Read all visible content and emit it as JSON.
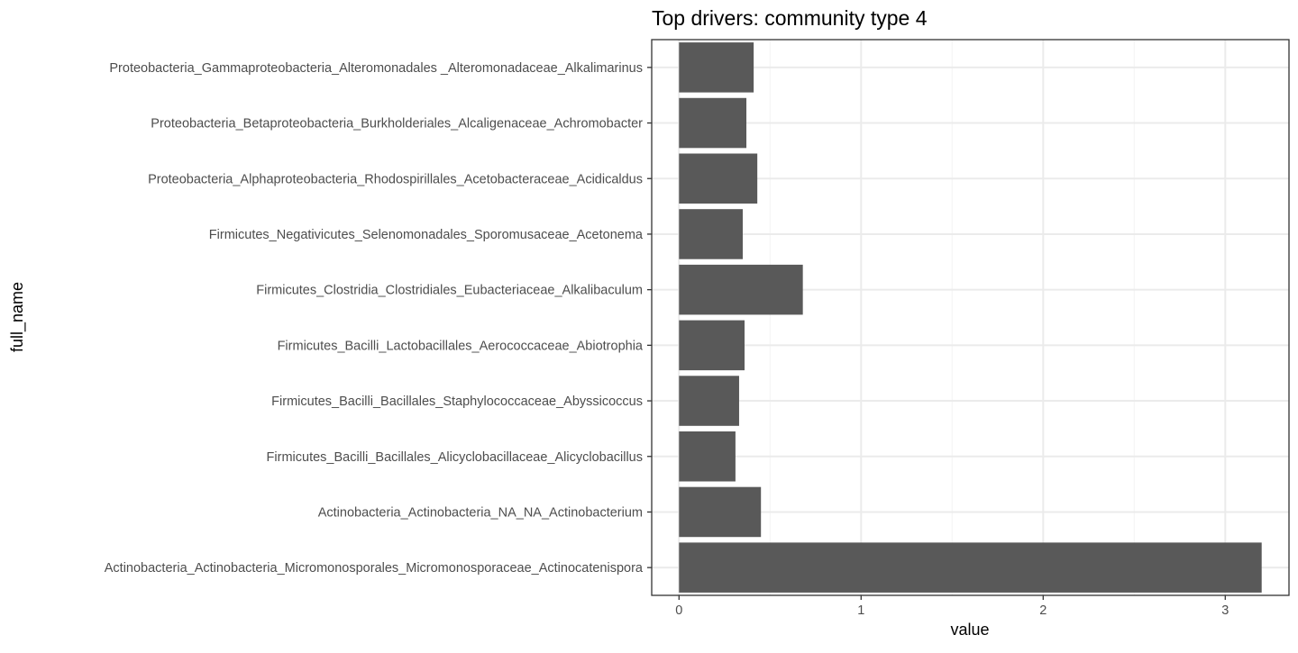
{
  "chart_data": {
    "type": "bar",
    "orientation": "horizontal",
    "title": "Top drivers: community type 4",
    "xlabel": "value",
    "ylabel": "full_name",
    "xlim": [
      -0.15,
      3.35
    ],
    "x_ticks": [
      "0",
      "1",
      "2",
      "3"
    ],
    "grid": true,
    "categories": [
      "Actinobacteria_Actinobacteria_Micromonosporales_Micromonosporaceae_Actinocatenispora",
      "Actinobacteria_Actinobacteria_NA_NA_Actinobacterium",
      "Firmicutes_Bacilli_Bacillales_Alicyclobacillaceae_Alicyclobacillus",
      "Firmicutes_Bacilli_Bacillales_Staphylococcaceae_Abyssicoccus",
      "Firmicutes_Bacilli_Lactobacillales_Aerococcaceae_Abiotrophia",
      "Firmicutes_Clostridia_Clostridiales_Eubacteriaceae_Alkalibaculum",
      "Firmicutes_Negativicutes_Selenomonadales_Sporomusaceae_Acetonema",
      "Proteobacteria_Alphaproteobacteria_Rhodospirillales_Acetobacteraceae_Acidicaldus",
      "Proteobacteria_Betaproteobacteria_Burkholderiales_Alcaligenaceae_Achromobacter",
      "Proteobacteria_Gammaproteobacteria_Alteromonadales _Alteromonadaceae_Alkalimarinus"
    ],
    "values": [
      3.2,
      0.45,
      0.31,
      0.33,
      0.36,
      0.68,
      0.35,
      0.43,
      0.37,
      0.41
    ],
    "colors": {
      "bar": "#595959",
      "panel_border": "#333333",
      "grid_major": "#ebebeb",
      "grid_minor": "#f5f5f5",
      "tick_text": "#4d4d4d"
    }
  }
}
